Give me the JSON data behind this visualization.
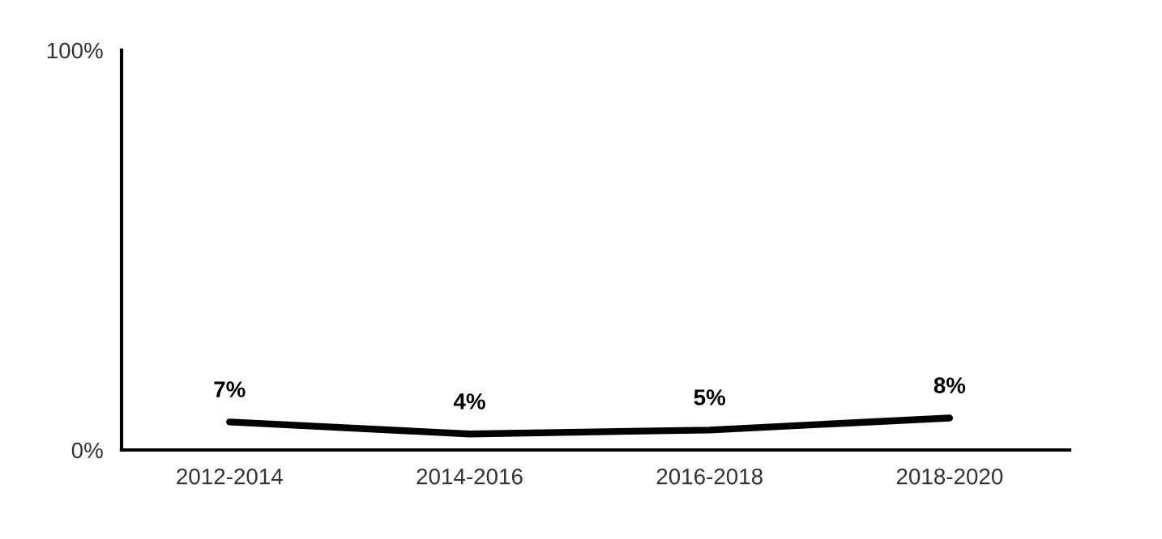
{
  "chart_data": {
    "type": "line",
    "categories": [
      "2012-2014",
      "2014-2016",
      "2016-2018",
      "2018-2020"
    ],
    "series": [
      {
        "color": "#000000",
        "values": [
          7,
          4,
          5,
          8
        ],
        "value_labels": [
          "7%",
          "4%",
          "5%",
          "8%"
        ]
      }
    ],
    "ylim": [
      0,
      100
    ],
    "yticks": [
      {
        "value": 0,
        "label": "0%"
      },
      {
        "value": 100,
        "label": "100%"
      }
    ],
    "grid": false,
    "legend": false,
    "marker": "none",
    "line_style": "solid"
  }
}
